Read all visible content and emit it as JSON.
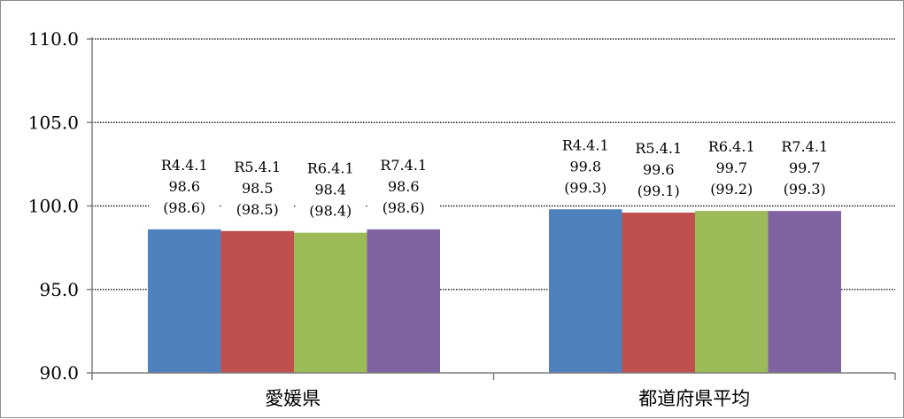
{
  "chart_data": {
    "type": "bar",
    "categories": [
      "愛媛県",
      "都道府県平均"
    ],
    "ylim": [
      90,
      110
    ],
    "y_ticks": [
      "90.0",
      "95.0",
      "100.0",
      "105.0",
      "110.0"
    ],
    "grid": true,
    "legend": "none",
    "series": [
      {
        "color": "#4f81bd",
        "values": [
          98.6,
          99.8
        ],
        "labels": [
          [
            "R4.4.1",
            "98.6",
            "(98.6)"
          ],
          [
            "R4.4.1",
            "99.8",
            "(99.3)"
          ]
        ]
      },
      {
        "color": "#c0504d",
        "values": [
          98.5,
          99.6
        ],
        "labels": [
          [
            "R5.4.1",
            "98.5",
            "(98.5)"
          ],
          [
            "R5.4.1",
            "99.6",
            "(99.1)"
          ]
        ]
      },
      {
        "color": "#9bbb59",
        "values": [
          98.4,
          99.7
        ],
        "labels": [
          [
            "R6.4.1",
            "98.4",
            "(98.4)"
          ],
          [
            "R6.4.1",
            "99.7",
            "(99.2)"
          ]
        ]
      },
      {
        "color": "#8064a2",
        "values": [
          98.6,
          99.7
        ],
        "labels": [
          [
            "R7.4.1",
            "98.6",
            "(98.6)"
          ],
          [
            "R7.4.1",
            "99.7",
            "(99.3)"
          ]
        ]
      }
    ]
  }
}
